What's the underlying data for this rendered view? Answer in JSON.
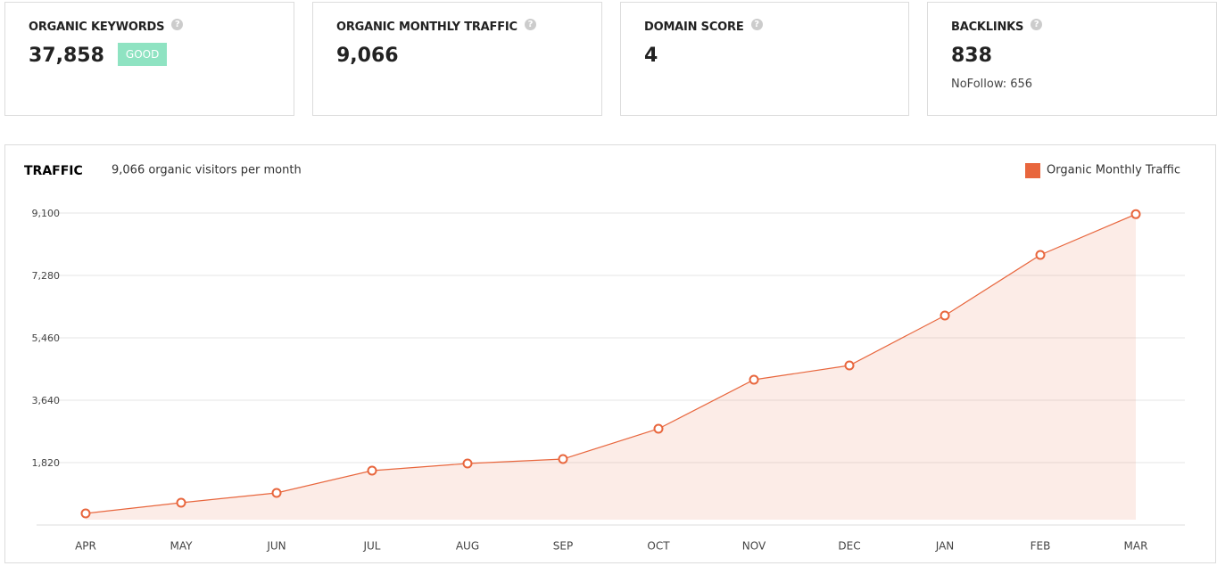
{
  "cards": [
    {
      "title": "ORGANIC KEYWORDS",
      "value": "37,858",
      "badge": "GOOD"
    },
    {
      "title": "ORGANIC MONTHLY TRAFFIC",
      "value": "9,066"
    },
    {
      "title": "DOMAIN SCORE",
      "value": "4"
    },
    {
      "title": "BACKLINKS",
      "value": "838",
      "note": "NoFollow: 656"
    }
  ],
  "chart_data": {
    "type": "area",
    "title": "TRAFFIC",
    "subtitle": "9,066 organic visitors per month",
    "categories": [
      "APR",
      "MAY",
      "JUN",
      "JUL",
      "AUG",
      "SEP",
      "OCT",
      "NOV",
      "DEC",
      "JAN",
      "FEB",
      "MAR"
    ],
    "series": [
      {
        "name": "Organic Monthly Traffic",
        "color": "#e8663d",
        "values": [
          338,
          650,
          936,
          1586,
          1794,
          1924,
          2808,
          4238,
          4654,
          6110,
          7878,
          9066
        ]
      }
    ],
    "ylim": [
      0,
      9100
    ],
    "yticks": [
      {
        "value": 1820,
        "label": "1,820"
      },
      {
        "value": 3640,
        "label": "3,640"
      },
      {
        "value": 5460,
        "label": "5,460"
      },
      {
        "value": 7280,
        "label": "7,280"
      },
      {
        "value": 9100,
        "label": "9,100"
      }
    ],
    "grid": true,
    "legend": "top-right"
  }
}
